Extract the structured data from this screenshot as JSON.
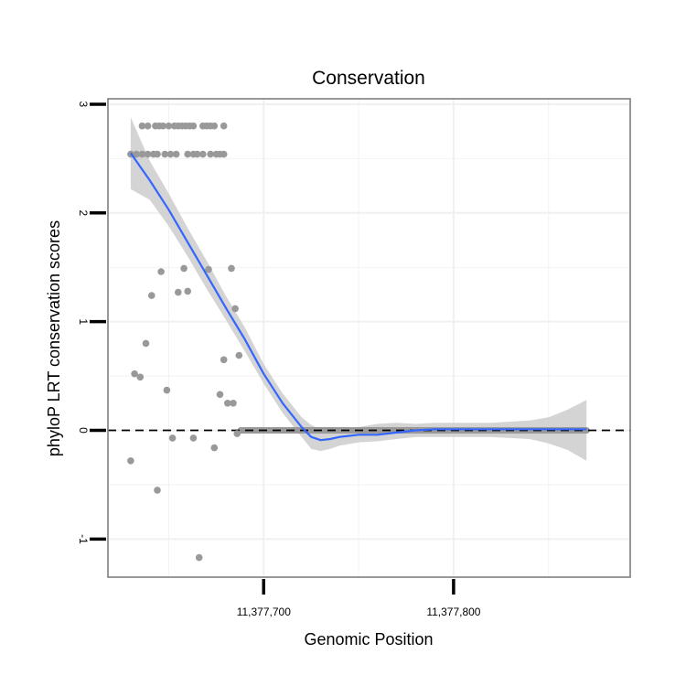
{
  "chart_data": {
    "type": "scatter",
    "title": "Conservation",
    "xlabel": "Genomic Position",
    "ylabel": "phyloP LRT conservation scores",
    "xlim": [
      11377618,
      11377893
    ],
    "ylim": [
      -1.35,
      3.05
    ],
    "x_ticks": [
      {
        "value": 11377700,
        "label": "11,377,700"
      },
      {
        "value": 11377800,
        "label": "11,377,800"
      }
    ],
    "y_ticks": [
      {
        "value": -1,
        "label": "-1"
      },
      {
        "value": 0,
        "label": "0"
      },
      {
        "value": 1,
        "label": "1"
      },
      {
        "value": 2,
        "label": "2"
      },
      {
        "value": 3,
        "label": "3"
      }
    ],
    "reference_line": {
      "y": 0,
      "style": "dashed",
      "color": "#000000"
    },
    "points_color": "#999999",
    "points": [
      [
        11377630,
        -0.28
      ],
      [
        11377632,
        0.52
      ],
      [
        11377635,
        0.49
      ],
      [
        11377638,
        0.8
      ],
      [
        11377641,
        1.24
      ],
      [
        11377644,
        -0.55
      ],
      [
        11377646,
        1.46
      ],
      [
        11377649,
        0.37
      ],
      [
        11377652,
        -0.07
      ],
      [
        11377655,
        1.27
      ],
      [
        11377658,
        1.49
      ],
      [
        11377660,
        1.28
      ],
      [
        11377663,
        -0.07
      ],
      [
        11377666,
        -1.17
      ],
      [
        11377671,
        1.48
      ],
      [
        11377674,
        -0.16
      ],
      [
        11377677,
        0.33
      ],
      [
        11377679,
        0.65
      ],
      [
        11377681,
        0.25
      ],
      [
        11377683,
        1.49
      ],
      [
        11377684,
        0.25
      ],
      [
        11377685,
        1.12
      ],
      [
        11377686,
        -0.03
      ],
      [
        11377687,
        0.69
      ],
      [
        11377636,
        2.8
      ],
      [
        11377639,
        2.8
      ],
      [
        11377643,
        2.8
      ],
      [
        11377645,
        2.8
      ],
      [
        11377647,
        2.8
      ],
      [
        11377650,
        2.8
      ],
      [
        11377653,
        2.8
      ],
      [
        11377655,
        2.8
      ],
      [
        11377657,
        2.8
      ],
      [
        11377659,
        2.8
      ],
      [
        11377661,
        2.8
      ],
      [
        11377663,
        2.8
      ],
      [
        11377668,
        2.8
      ],
      [
        11377670,
        2.8
      ],
      [
        11377672,
        2.8
      ],
      [
        11377674,
        2.8
      ],
      [
        11377679,
        2.8
      ],
      [
        11377630,
        2.54
      ],
      [
        11377633,
        2.54
      ],
      [
        11377636,
        2.54
      ],
      [
        11377639,
        2.54
      ],
      [
        11377642,
        2.54
      ],
      [
        11377644,
        2.54
      ],
      [
        11377648,
        2.54
      ],
      [
        11377651,
        2.54
      ],
      [
        11377654,
        2.54
      ],
      [
        11377660,
        2.54
      ],
      [
        11377663,
        2.54
      ],
      [
        11377665,
        2.54
      ],
      [
        11377668,
        2.54
      ],
      [
        11377672,
        2.54
      ],
      [
        11377675,
        2.54
      ],
      [
        11377677,
        2.54
      ],
      [
        11377679,
        2.54
      ]
    ],
    "zero_run": {
      "x_start": 11377688,
      "x_end": 11377870,
      "y": 0,
      "step": 1
    },
    "smooth": {
      "color": "#3366FF",
      "band_color": "#cccccc",
      "x": [
        11377630,
        11377640,
        11377650,
        11377660,
        11377670,
        11377680,
        11377690,
        11377700,
        11377710,
        11377720,
        11377725,
        11377730,
        11377735,
        11377740,
        11377750,
        11377760,
        11377770,
        11377780,
        11377790,
        11377800,
        11377810,
        11377820,
        11377830,
        11377840,
        11377850,
        11377860,
        11377870
      ],
      "y": [
        2.55,
        2.3,
        2.03,
        1.73,
        1.43,
        1.13,
        0.84,
        0.52,
        0.25,
        0.03,
        -0.06,
        -0.09,
        -0.08,
        -0.06,
        -0.04,
        -0.04,
        -0.02,
        0.0,
        0.01,
        0.01,
        0.01,
        0.01,
        0.01,
        0.01,
        0.01,
        0.01,
        0.01
      ],
      "lower": [
        2.22,
        2.12,
        1.88,
        1.6,
        1.3,
        1.02,
        0.73,
        0.43,
        0.16,
        -0.06,
        -0.17,
        -0.19,
        -0.17,
        -0.14,
        -0.11,
        -0.1,
        -0.08,
        -0.06,
        -0.06,
        -0.06,
        -0.06,
        -0.06,
        -0.07,
        -0.08,
        -0.12,
        -0.18,
        -0.28
      ],
      "upper": [
        2.88,
        2.48,
        2.18,
        1.86,
        1.56,
        1.24,
        0.95,
        0.61,
        0.34,
        0.12,
        0.05,
        0.01,
        0.01,
        0.02,
        0.03,
        0.06,
        0.07,
        0.06,
        0.07,
        0.07,
        0.07,
        0.07,
        0.08,
        0.09,
        0.12,
        0.19,
        0.28
      ]
    }
  }
}
